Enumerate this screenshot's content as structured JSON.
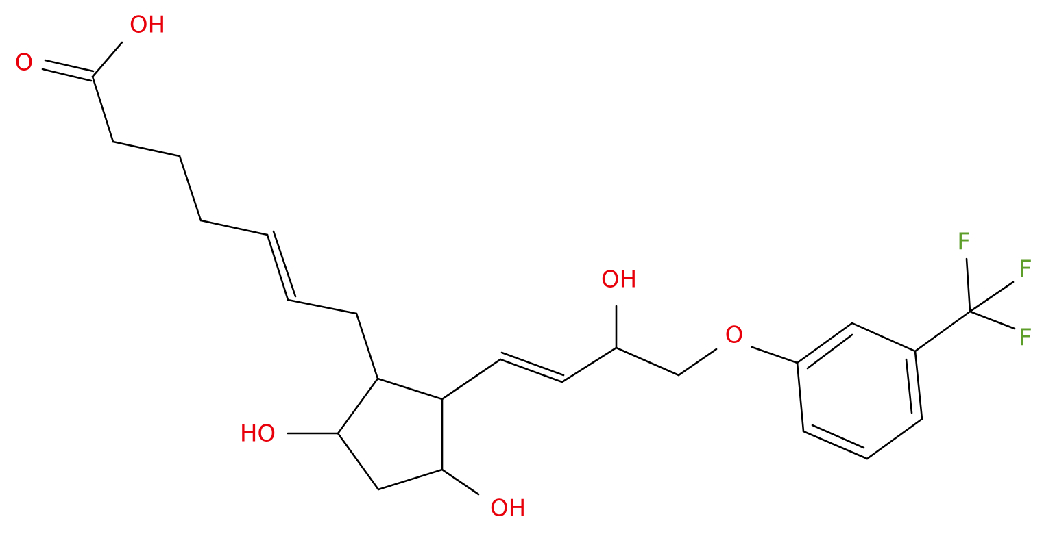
{
  "atoms": [
    {
      "label": "OH"
    },
    {
      "label": "O"
    },
    {
      "label": "HO"
    },
    {
      "label": "OH"
    },
    {
      "label": "OH"
    },
    {
      "label": "O"
    },
    {
      "label": "F"
    },
    {
      "label": "F"
    },
    {
      "label": "F"
    }
  ]
}
